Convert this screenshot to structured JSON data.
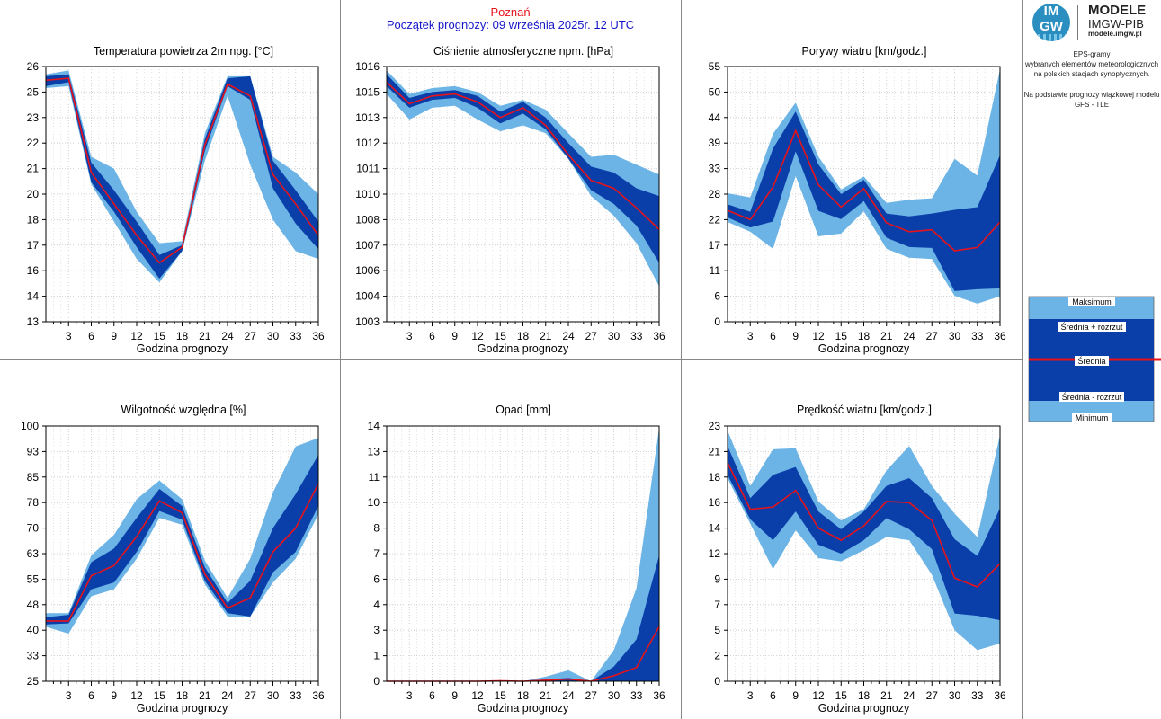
{
  "header": {
    "city": "Poznań",
    "start": "Początek prognozy: 09 września 2025r. 12 UTC"
  },
  "logo": {
    "circle_top": "IM",
    "circle_bottom": "GW",
    "title": "MODELE",
    "subtitle": "IMGW-PIB",
    "url": "modele.imgw.pl"
  },
  "description": {
    "line1": "EPS-gramy",
    "line2": "wybranych elementów meteorologicznych",
    "line3": "na polskich stacjach  synoptycznych.",
    "line4": "Na podstawie prognozy wiązkowej modelu",
    "line5": "GFS - TLE"
  },
  "legend": {
    "max": "Maksimum",
    "mean_plus": "Średnia + rozrzut",
    "mean": "Średnia",
    "mean_minus": "Średnia - rozrzut",
    "min": "Minimum"
  },
  "colors": {
    "light_band": "#6cb4e6",
    "dark_band": "#0a3faa",
    "mean_line": "#e8121a",
    "grid": "#c8c8c8"
  },
  "chart_data": [
    {
      "type": "area",
      "title": "Temperatura powietrza 2m npg. [°C]",
      "xlabel": "Godzina prognozy",
      "x": [
        0,
        3,
        6,
        9,
        12,
        15,
        18,
        21,
        24,
        27,
        30,
        33,
        36
      ],
      "xticks": [
        3,
        6,
        9,
        12,
        15,
        18,
        21,
        24,
        27,
        30,
        33,
        36
      ],
      "ylim": [
        13,
        26
      ],
      "yticks": [
        "13",
        "14",
        "16",
        "17",
        "18",
        "20",
        "21",
        "22",
        "23",
        "25",
        "26"
      ],
      "series": [
        {
          "name": "Minimum",
          "values": [
            24.9,
            25.0,
            20.0,
            18.1,
            16.2,
            15.0,
            16.6,
            21.2,
            24.5,
            21.0,
            18.2,
            16.6,
            16.2
          ]
        },
        {
          "name": "Średnia - rozrzut",
          "values": [
            25.0,
            25.2,
            20.1,
            18.6,
            16.8,
            15.2,
            16.6,
            21.7,
            25.0,
            24.3,
            19.8,
            18.0,
            16.7
          ]
        },
        {
          "name": "Średnia",
          "values": [
            25.3,
            25.4,
            20.6,
            19.0,
            17.4,
            16.0,
            16.8,
            22.0,
            25.1,
            24.5,
            20.5,
            19.0,
            17.4
          ]
        },
        {
          "name": "Średnia + rozrzut",
          "values": [
            25.5,
            25.6,
            21.1,
            19.7,
            18.1,
            16.4,
            16.9,
            22.3,
            25.4,
            25.5,
            21.2,
            19.7,
            18.1
          ]
        },
        {
          "name": "Maksimum",
          "values": [
            25.6,
            25.8,
            21.4,
            20.8,
            18.6,
            17.0,
            17.1,
            22.6,
            25.5,
            25.5,
            21.4,
            20.6,
            19.5
          ]
        }
      ]
    },
    {
      "type": "area",
      "title": "Ciśnienie atmosferyczne npm. [hPa]",
      "xlabel": "Godzina prognozy",
      "x": [
        0,
        3,
        6,
        9,
        12,
        15,
        18,
        21,
        24,
        27,
        30,
        33,
        36
      ],
      "xticks": [
        3,
        6,
        9,
        12,
        15,
        18,
        21,
        24,
        27,
        30,
        33,
        36
      ],
      "ylim": [
        1003,
        1016
      ],
      "yticks": [
        "1003",
        "1004",
        "1006",
        "1007",
        "1008",
        "1010",
        "1011",
        "1012",
        "1013",
        "1015",
        "1016"
      ],
      "series": [
        {
          "name": "Minimum",
          "values": [
            1014.6,
            1013.3,
            1013.9,
            1014.0,
            1013.3,
            1012.7,
            1013.0,
            1012.6,
            1011.3,
            1009.4,
            1008.4,
            1007.0,
            1004.8
          ]
        },
        {
          "name": "Średnia - rozrzut",
          "values": [
            1015.0,
            1013.9,
            1014.3,
            1014.4,
            1013.9,
            1013.1,
            1013.6,
            1012.8,
            1011.3,
            1009.7,
            1009.0,
            1007.9,
            1006.0
          ]
        },
        {
          "name": "Średnia",
          "values": [
            1015.2,
            1014.1,
            1014.5,
            1014.6,
            1014.2,
            1013.4,
            1013.9,
            1013.0,
            1011.5,
            1010.2,
            1009.8,
            1008.8,
            1007.7
          ]
        },
        {
          "name": "Średnia + rozrzut",
          "values": [
            1015.6,
            1014.4,
            1014.7,
            1014.8,
            1014.5,
            1013.7,
            1014.2,
            1013.4,
            1012.1,
            1010.9,
            1010.6,
            1009.8,
            1009.4
          ]
        },
        {
          "name": "Maksimum",
          "values": [
            1015.8,
            1014.6,
            1014.9,
            1015.0,
            1014.7,
            1014.0,
            1014.3,
            1013.8,
            1012.6,
            1011.4,
            1011.5,
            1011.0,
            1010.5
          ]
        }
      ]
    },
    {
      "type": "area",
      "title": "Porywy wiatru [km/godz.]",
      "xlabel": "Godzina prognozy",
      "x": [
        0,
        3,
        6,
        9,
        12,
        15,
        18,
        21,
        24,
        27,
        30,
        33,
        36
      ],
      "xticks": [
        3,
        6,
        9,
        12,
        15,
        18,
        21,
        24,
        27,
        30,
        33,
        36
      ],
      "ylim": [
        0,
        55
      ],
      "yticks": [
        "0",
        "6",
        "11",
        "17",
        "22",
        "28",
        "33",
        "39",
        "44",
        "50",
        "55"
      ],
      "series": [
        {
          "name": "Minimum",
          "values": [
            21.5,
            19.4,
            15.7,
            31.4,
            18.4,
            19.0,
            23.8,
            15.7,
            13.8,
            13.5,
            5.6,
            3.9,
            5.5
          ]
        },
        {
          "name": "Średnia - rozrzut",
          "values": [
            22.5,
            20.3,
            21.6,
            36.7,
            23.9,
            22.1,
            26.0,
            18.1,
            16.1,
            15.9,
            6.6,
            7.0,
            7.2
          ]
        },
        {
          "name": "Średnia",
          "values": [
            24.0,
            22.0,
            29.0,
            41.2,
            29.5,
            24.7,
            28.7,
            21.3,
            19.4,
            19.8,
            15.3,
            16.0,
            21.5
          ]
        },
        {
          "name": "Średnia + rozrzut",
          "values": [
            25.3,
            23.7,
            37.3,
            45.3,
            33.9,
            27.5,
            30.6,
            23.3,
            22.7,
            23.3,
            24.1,
            24.7,
            35.9
          ]
        },
        {
          "name": "Maksimum",
          "values": [
            27.7,
            26.8,
            40.5,
            47.2,
            35.6,
            28.5,
            31.3,
            25.6,
            26.3,
            26.6,
            35.1,
            31.5,
            54.4
          ]
        }
      ]
    },
    {
      "type": "area",
      "title": "Wilgotność względna [%]",
      "xlabel": "Godzina prognozy",
      "x": [
        0,
        3,
        6,
        9,
        12,
        15,
        18,
        21,
        24,
        27,
        30,
        33,
        36
      ],
      "xticks": [
        3,
        6,
        9,
        12,
        15,
        18,
        21,
        24,
        27,
        30,
        33,
        36
      ],
      "ylim": [
        25,
        100
      ],
      "yticks": [
        "25",
        "33",
        "40",
        "48",
        "55",
        "63",
        "70",
        "78",
        "85",
        "93",
        "100"
      ],
      "series": [
        {
          "name": "Minimum",
          "values": [
            41.0,
            39.0,
            50.0,
            52.0,
            61.0,
            73.0,
            71.0,
            53.5,
            44.0,
            44.0,
            54.0,
            61.0,
            74.0
          ]
        },
        {
          "name": "Średnia - rozrzut",
          "values": [
            41.7,
            42.0,
            52.0,
            54.0,
            63.0,
            75.0,
            72.5,
            54.5,
            45.0,
            44.0,
            57.0,
            63.0,
            76.5
          ]
        },
        {
          "name": "Średnia",
          "values": [
            42.7,
            42.7,
            56.0,
            59.0,
            67.5,
            78.0,
            74.5,
            56.5,
            46.5,
            49.5,
            63.0,
            70.0,
            83.0
          ]
        },
        {
          "name": "Średnia + rozrzut",
          "values": [
            43.8,
            44.5,
            60.0,
            64.0,
            73.0,
            81.5,
            76.5,
            58.5,
            48.0,
            54.5,
            70.0,
            80.0,
            91.5
          ]
        },
        {
          "name": "Maksimum",
          "values": [
            45.0,
            45.0,
            62.0,
            68.0,
            78.5,
            84.0,
            78.5,
            60.5,
            49.5,
            61.0,
            80.5,
            94.0,
            96.5
          ]
        }
      ]
    },
    {
      "type": "area",
      "title": "Opad [mm]",
      "xlabel": "Godzina prognozy",
      "x": [
        0,
        3,
        6,
        9,
        12,
        15,
        18,
        21,
        24,
        27,
        30,
        33,
        36
      ],
      "xticks": [
        3,
        6,
        9,
        12,
        15,
        18,
        21,
        24,
        27,
        30,
        33,
        36
      ],
      "ylim": [
        0,
        14
      ],
      "yticks": [
        "0",
        "1",
        "3",
        "4",
        "6",
        "7",
        "8",
        "10",
        "11",
        "13",
        "14"
      ],
      "series": [
        {
          "name": "Minimum",
          "values": [
            0,
            0,
            0,
            0,
            0,
            0,
            0,
            0,
            0,
            0,
            0,
            0,
            0
          ]
        },
        {
          "name": "Średnia - rozrzut",
          "values": [
            0,
            0,
            0,
            0,
            0,
            0,
            0,
            0,
            0,
            0,
            0,
            0,
            0
          ]
        },
        {
          "name": "Średnia",
          "values": [
            0,
            0,
            0,
            0,
            0,
            0.02,
            0,
            0.05,
            0.12,
            0,
            0.3,
            0.75,
            3.0
          ]
        },
        {
          "name": "Średnia + rozrzut",
          "values": [
            0,
            0,
            0,
            0,
            0,
            0.03,
            0,
            0.1,
            0.18,
            0,
            0.8,
            2.3,
            6.9
          ]
        },
        {
          "name": "Maksimum",
          "values": [
            0,
            0,
            0,
            0,
            0,
            0.05,
            0,
            0.25,
            0.6,
            0,
            1.7,
            5.1,
            13.9
          ]
        }
      ]
    },
    {
      "type": "area",
      "title": "Prędkość wiatru [km/godz.]",
      "xlabel": "Godzina prognozy",
      "x": [
        0,
        3,
        6,
        9,
        12,
        15,
        18,
        21,
        24,
        27,
        30,
        33,
        36
      ],
      "xticks": [
        3,
        6,
        9,
        12,
        15,
        18,
        21,
        24,
        27,
        30,
        33,
        36
      ],
      "ylim": [
        0,
        23
      ],
      "yticks": [
        "0",
        "2",
        "5",
        "7",
        "9",
        "12",
        "14",
        "16",
        "18",
        "21",
        "23"
      ],
      "series": [
        {
          "name": "Minimum",
          "values": [
            18.3,
            14.2,
            10.1,
            13.6,
            11.1,
            10.8,
            11.8,
            13.0,
            12.7,
            9.6,
            4.6,
            2.8,
            3.4
          ]
        },
        {
          "name": "Średnia - rozrzut",
          "values": [
            18.6,
            14.6,
            12.7,
            15.3,
            12.3,
            11.5,
            12.7,
            14.7,
            13.7,
            11.9,
            6.1,
            5.9,
            5.5
          ]
        },
        {
          "name": "Średnia",
          "values": [
            19.7,
            15.5,
            15.7,
            17.2,
            13.8,
            12.7,
            14.0,
            16.2,
            16.1,
            14.5,
            9.3,
            8.5,
            10.6
          ]
        },
        {
          "name": "Średnia + rozrzut",
          "values": [
            21.2,
            16.5,
            18.6,
            19.3,
            15.3,
            13.7,
            15.3,
            17.6,
            18.3,
            16.5,
            12.8,
            11.3,
            15.6
          ]
        },
        {
          "name": "Maksimum",
          "values": [
            22.6,
            17.6,
            20.9,
            21.0,
            16.2,
            14.5,
            15.5,
            19.0,
            21.2,
            17.6,
            15.1,
            13.0,
            22.2
          ]
        }
      ]
    }
  ]
}
